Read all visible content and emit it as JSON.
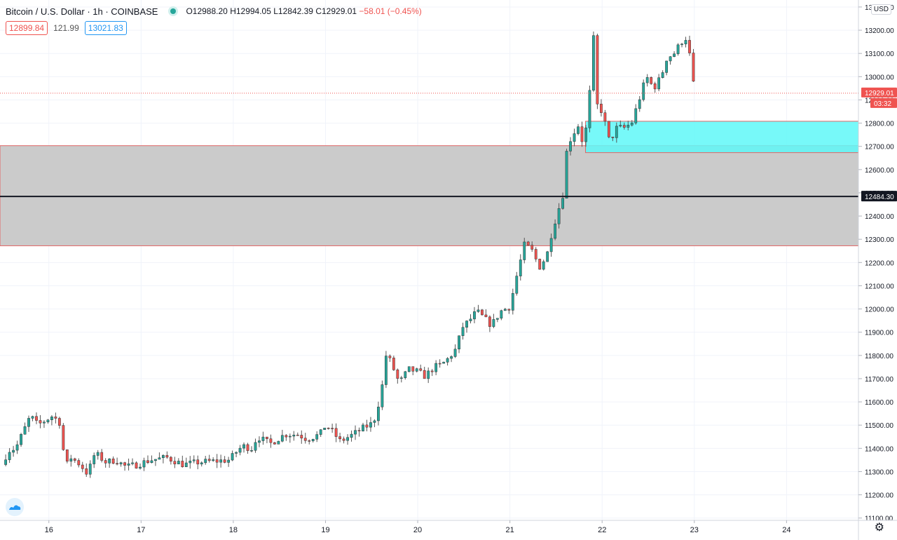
{
  "header": {
    "symbol": "Bitcoin / U.S. Dollar · 1h · COINBASE",
    "open": "O12988.20",
    "high": "H12994.05",
    "low": "L12842.39",
    "close": "C12929.01",
    "change": "−58.01 (−0.45%)",
    "bid": "12899.84",
    "spread": "121.99",
    "ask": "13021.83",
    "currency": "USD"
  },
  "colors": {
    "up": "#26a69a",
    "down": "#ef5350",
    "zone_gray": "#c8c8c8",
    "zone_border": "#e06666",
    "zone_cyan": "#5ff8f8",
    "midline": "#131722"
  },
  "price_axis_labels": [
    "13300.00",
    "13200.00",
    "13100.00",
    "13000.00",
    "12900.00",
    "12800.00",
    "12700.00",
    "12600.00",
    "12500.00",
    "12400.00",
    "12300.00",
    "12200.00",
    "12100.00",
    "12000.00",
    "11900.00",
    "11800.00",
    "11700.00",
    "11600.00",
    "11500.00",
    "11400.00",
    "11300.00",
    "11200.00",
    "11100.00"
  ],
  "price_markers": {
    "last_price": "12929.01",
    "countdown": "03:32",
    "midline_price": "12484.30"
  },
  "chart_data": {
    "type": "candlestick",
    "title": "Bitcoin / U.S. Dollar · 1h · COINBASE",
    "x_tick_labels": [
      "16",
      "17",
      "18",
      "19",
      "20",
      "21",
      "22",
      "23",
      "24"
    ],
    "x_ticks": [
      16,
      17,
      18,
      19,
      20,
      21,
      22,
      23,
      24
    ],
    "xlim": [
      15.47,
      24.78
    ],
    "ylim": [
      11090,
      13330
    ],
    "y_ticks": [
      13300,
      13200,
      13100,
      13000,
      12900,
      12800,
      12700,
      12600,
      12500,
      12400,
      12300,
      12200,
      12100,
      12000,
      11900,
      11800,
      11700,
      11600,
      11500,
      11400,
      11300,
      11200,
      11100
    ],
    "grid": true,
    "candle_period_days": 0.041667,
    "anchors": [
      [
        15.49,
        11330
      ],
      [
        15.56,
        11390
      ],
      [
        15.64,
        11400
      ],
      [
        15.72,
        11470
      ],
      [
        15.8,
        11540
      ],
      [
        15.88,
        11500
      ],
      [
        15.96,
        11520
      ],
      [
        16.04,
        11540
      ],
      [
        16.12,
        11510
      ],
      [
        16.18,
        11320
      ],
      [
        16.24,
        11360
      ],
      [
        16.34,
        11330
      ],
      [
        16.42,
        11290
      ],
      [
        16.5,
        11380
      ],
      [
        16.62,
        11340
      ],
      [
        16.72,
        11350
      ],
      [
        16.84,
        11320
      ],
      [
        16.96,
        11330
      ],
      [
        17.1,
        11350
      ],
      [
        17.28,
        11360
      ],
      [
        17.46,
        11330
      ],
      [
        17.62,
        11340
      ],
      [
        17.8,
        11345
      ],
      [
        17.96,
        11350
      ],
      [
        18.02,
        11380
      ],
      [
        18.1,
        11410
      ],
      [
        18.2,
        11400
      ],
      [
        18.26,
        11450
      ],
      [
        18.4,
        11420
      ],
      [
        18.56,
        11460
      ],
      [
        18.7,
        11460
      ],
      [
        18.8,
        11440
      ],
      [
        18.94,
        11460
      ],
      [
        19.0,
        11500
      ],
      [
        19.06,
        11480
      ],
      [
        19.16,
        11430
      ],
      [
        19.3,
        11460
      ],
      [
        19.42,
        11490
      ],
      [
        19.52,
        11510
      ],
      [
        19.58,
        11600
      ],
      [
        19.62,
        11680
      ],
      [
        19.66,
        11810
      ],
      [
        19.72,
        11760
      ],
      [
        19.8,
        11680
      ],
      [
        19.9,
        11740
      ],
      [
        20.0,
        11730
      ],
      [
        20.08,
        11710
      ],
      [
        20.18,
        11750
      ],
      [
        20.26,
        11760
      ],
      [
        20.34,
        11790
      ],
      [
        20.42,
        11830
      ],
      [
        20.48,
        11920
      ],
      [
        20.56,
        11950
      ],
      [
        20.64,
        11990
      ],
      [
        20.72,
        11960
      ],
      [
        20.8,
        11930
      ],
      [
        20.9,
        11990
      ],
      [
        21.0,
        12010
      ],
      [
        21.06,
        12120
      ],
      [
        21.16,
        12280
      ],
      [
        21.24,
        12250
      ],
      [
        21.32,
        12180
      ],
      [
        21.4,
        12230
      ],
      [
        21.46,
        12340
      ],
      [
        21.52,
        12420
      ],
      [
        21.58,
        12500
      ],
      [
        21.62,
        12700
      ],
      [
        21.68,
        12750
      ],
      [
        21.74,
        12790
      ],
      [
        21.8,
        12700
      ],
      [
        21.86,
        12890
      ],
      [
        21.9,
        13220
      ],
      [
        21.94,
        12880
      ],
      [
        22.0,
        12850
      ],
      [
        22.08,
        12720
      ],
      [
        22.16,
        12780
      ],
      [
        22.24,
        12780
      ],
      [
        22.32,
        12800
      ],
      [
        22.4,
        12900
      ],
      [
        22.48,
        13000
      ],
      [
        22.56,
        12950
      ],
      [
        22.64,
        13000
      ],
      [
        22.7,
        13080
      ],
      [
        22.78,
        13100
      ],
      [
        22.86,
        13150
      ],
      [
        22.92,
        13170
      ],
      [
        22.98,
        13010
      ],
      [
        23.0,
        12929
      ]
    ],
    "drawings": [
      {
        "type": "rectangle",
        "name": "gray-zone",
        "y_from": 12272,
        "y_to": 12703,
        "x_from": 15.47,
        "x_to": 24.78
      },
      {
        "type": "horizontal_line",
        "name": "midline",
        "y": 12484.3
      },
      {
        "type": "rectangle",
        "name": "cyan-zone",
        "y_from": 12673,
        "y_to": 12808,
        "x_from": 21.82,
        "x_to": 24.78
      }
    ]
  }
}
